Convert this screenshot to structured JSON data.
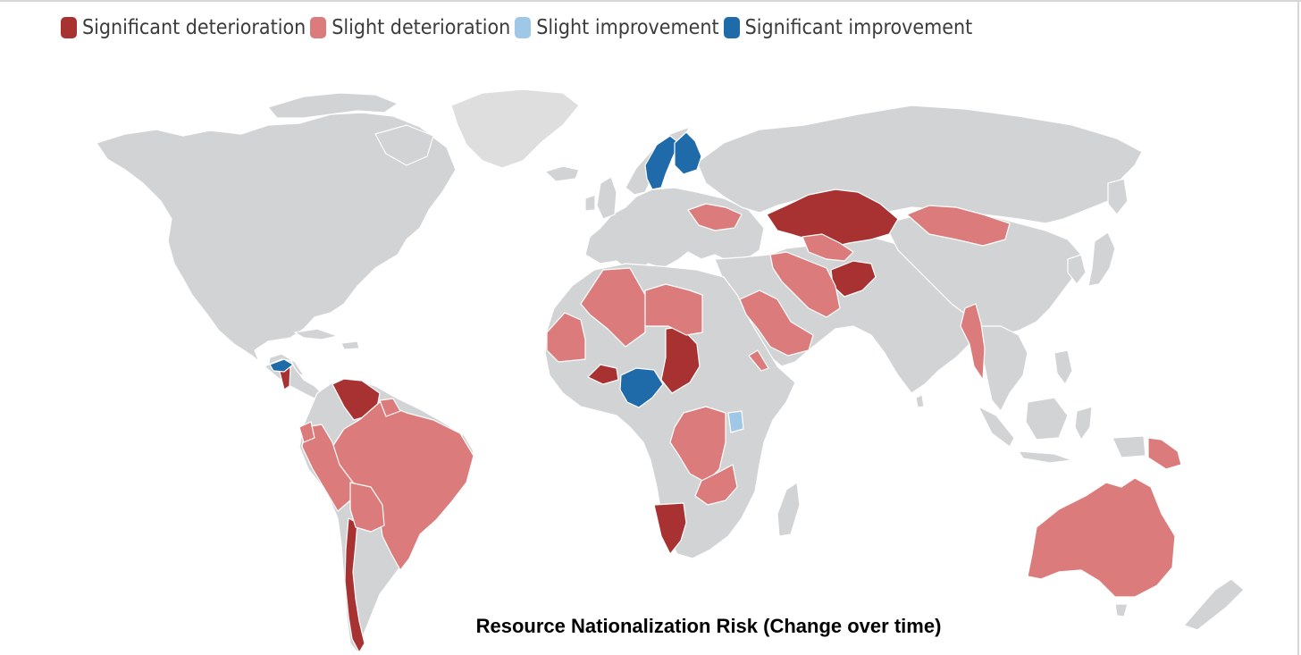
{
  "legend": {
    "items": [
      {
        "label": "Significant deterioration",
        "color": "#a83232"
      },
      {
        "label": "Slight deterioration",
        "color": "#db7b7b"
      },
      {
        "label": "Slight improvement",
        "color": "#9ec8e6"
      },
      {
        "label": "Significant improvement",
        "color": "#1f6aa8"
      }
    ]
  },
  "caption": "Resource Nationalization Risk (Change over time)",
  "colors": {
    "land": "#d2d3d4",
    "significant_deterioration": "#a83232",
    "slight_deterioration": "#db7b7b",
    "slight_improvement": "#9ec8e6",
    "significant_improvement": "#1f6aa8"
  },
  "countries": [
    {
      "name": "Kazakhstan",
      "category": "significant_deterioration"
    },
    {
      "name": "Afghanistan",
      "category": "significant_deterioration"
    },
    {
      "name": "Chad",
      "category": "significant_deterioration"
    },
    {
      "name": "Burkina Faso",
      "category": "significant_deterioration"
    },
    {
      "name": "Namibia",
      "category": "significant_deterioration"
    },
    {
      "name": "Venezuela",
      "category": "significant_deterioration"
    },
    {
      "name": "Chile",
      "category": "significant_deterioration"
    },
    {
      "name": "Nicaragua",
      "category": "significant_deterioration"
    },
    {
      "name": "Ukraine",
      "category": "slight_deterioration"
    },
    {
      "name": "Mongolia",
      "category": "slight_deterioration"
    },
    {
      "name": "Iran",
      "category": "slight_deterioration"
    },
    {
      "name": "Uzbekistan",
      "category": "slight_deterioration"
    },
    {
      "name": "Saudi Arabia",
      "category": "slight_deterioration"
    },
    {
      "name": "Myanmar",
      "category": "slight_deterioration"
    },
    {
      "name": "Algeria",
      "category": "slight_deterioration"
    },
    {
      "name": "Libya",
      "category": "slight_deterioration"
    },
    {
      "name": "Mauritania",
      "category": "slight_deterioration"
    },
    {
      "name": "DR Congo",
      "category": "slight_deterioration"
    },
    {
      "name": "Zambia",
      "category": "slight_deterioration"
    },
    {
      "name": "Eritrea",
      "category": "slight_deterioration"
    },
    {
      "name": "Brazil",
      "category": "slight_deterioration"
    },
    {
      "name": "Peru",
      "category": "slight_deterioration"
    },
    {
      "name": "Bolivia",
      "category": "slight_deterioration"
    },
    {
      "name": "Ecuador",
      "category": "slight_deterioration"
    },
    {
      "name": "Guyana",
      "category": "slight_deterioration"
    },
    {
      "name": "Australia",
      "category": "slight_deterioration"
    },
    {
      "name": "Papua New Guinea",
      "category": "slight_deterioration"
    },
    {
      "name": "Uganda",
      "category": "slight_improvement"
    },
    {
      "name": "Sweden",
      "category": "significant_improvement"
    },
    {
      "name": "Finland",
      "category": "significant_improvement"
    },
    {
      "name": "Nigeria",
      "category": "significant_improvement"
    },
    {
      "name": "Honduras",
      "category": "significant_improvement"
    }
  ]
}
